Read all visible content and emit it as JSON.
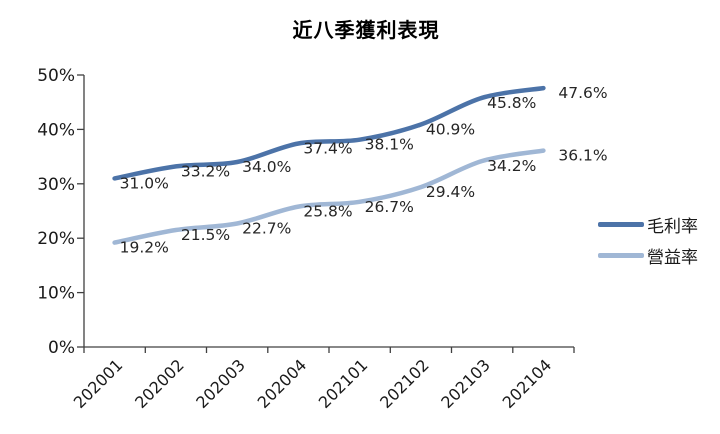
{
  "title": "近八季獲利表現",
  "colors": {
    "gross_margin_line": "#4c73a8",
    "operating_margin_line": "#a0b7d5",
    "axis": "#404040",
    "tick_label": "#1a1a1a",
    "data_label": "#262626"
  },
  "legend": [
    {
      "name": "毛利率",
      "series_id": "gross-margin"
    },
    {
      "name": "營益率",
      "series_id": "operating-margin"
    }
  ],
  "chart_data": {
    "type": "line",
    "title": "近八季獲利表現",
    "categories": [
      "202001",
      "202002",
      "202003",
      "202004",
      "202101",
      "202102",
      "202103",
      "202104"
    ],
    "series": [
      {
        "id": "gross-margin",
        "name": "毛利率",
        "color": "#4c73a8",
        "values": [
          31.0,
          33.2,
          34.0,
          37.4,
          38.1,
          40.9,
          45.8,
          47.6
        ],
        "labels": [
          "31.0%",
          "33.2%",
          "34.0%",
          "37.4%",
          "38.1%",
          "40.9%",
          "45.8%",
          "47.6%"
        ]
      },
      {
        "id": "operating-margin",
        "name": "營益率",
        "color": "#a0b7d5",
        "values": [
          19.2,
          21.5,
          22.7,
          25.8,
          26.7,
          29.4,
          34.2,
          36.1
        ],
        "labels": [
          "19.2%",
          "21.5%",
          "22.7%",
          "25.8%",
          "26.7%",
          "29.4%",
          "34.2%",
          "36.1%"
        ]
      }
    ],
    "xlabel": "",
    "ylabel": "",
    "ylim": [
      0,
      50
    ],
    "y_tick_step": 10,
    "y_tick_labels": [
      "0%",
      "10%",
      "20%",
      "30%",
      "40%",
      "50%"
    ],
    "grid": false,
    "smooth_lines": true,
    "legend_position": "right",
    "x_label_rotation_deg": -45
  }
}
